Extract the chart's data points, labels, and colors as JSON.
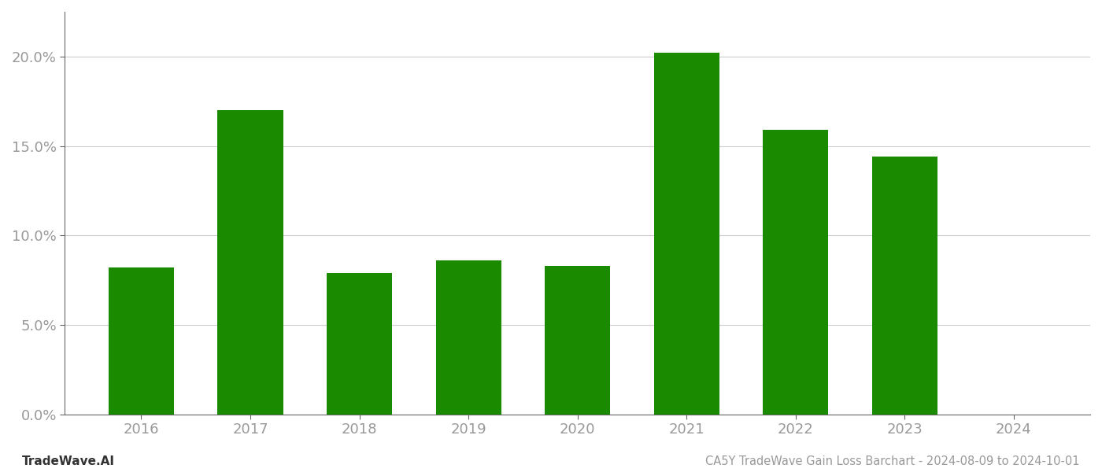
{
  "categories": [
    "2016",
    "2017",
    "2018",
    "2019",
    "2020",
    "2021",
    "2022",
    "2023",
    "2024"
  ],
  "values": [
    0.082,
    0.17,
    0.079,
    0.086,
    0.083,
    0.202,
    0.159,
    0.144,
    null
  ],
  "bar_color": "#1a8a00",
  "background_color": "#ffffff",
  "grid_color": "#cccccc",
  "title_text": "CA5Y TradeWave Gain Loss Barchart - 2024-08-09 to 2024-10-01",
  "watermark_text": "TradeWave.AI",
  "ylim_min": 0.0,
  "ylim_max": 0.225,
  "yticks": [
    0.0,
    0.05,
    0.1,
    0.15,
    0.2
  ],
  "ytick_labels": [
    "0.0%",
    "5.0%",
    "10.0%",
    "15.0%",
    "20.0%"
  ],
  "title_fontsize": 10.5,
  "watermark_fontsize": 11,
  "tick_fontsize": 13,
  "tick_color": "#999999",
  "spine_color": "#666666",
  "bar_width": 0.6
}
